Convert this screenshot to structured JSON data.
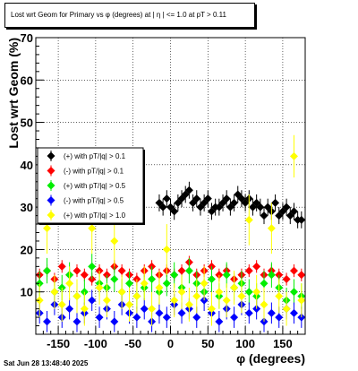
{
  "title": "Lost wrt Geom for Primary vs φ (degrees) at | η | <= 1.0 at pT > 0.11",
  "footer": "Sat Jun 28 13:48:40 2025",
  "chart_data": {
    "type": "scatter",
    "xlabel": "φ (degrees)",
    "ylabel": "Lost wrt Geom (%)",
    "xlim": [
      -180,
      180
    ],
    "ylim": [
      0,
      70
    ],
    "xticks": [
      -150,
      -100,
      -50,
      0,
      50,
      100,
      150
    ],
    "yticks": [
      10,
      20,
      30,
      40,
      50,
      60,
      70
    ],
    "grid": true,
    "legend_position": "middle-left",
    "series": [
      {
        "name": "(+) with pT/|q| > 0.1",
        "color": "#000000",
        "marker": "diamond",
        "x": [
          -15,
          -10,
          -5,
          0,
          5,
          10,
          15,
          20,
          25,
          30,
          35,
          40,
          45,
          50,
          55,
          60,
          65,
          70,
          75,
          80,
          85,
          90,
          95,
          100,
          105,
          110,
          115,
          120,
          125,
          130,
          135,
          140,
          145,
          150,
          155,
          160,
          165,
          170,
          175
        ],
        "y": [
          31,
          30,
          32,
          30,
          29,
          31,
          32,
          33,
          34,
          31,
          32,
          30,
          31,
          32,
          29,
          30,
          30,
          31,
          32,
          30,
          31,
          33,
          32,
          31,
          32,
          30,
          31,
          30,
          28,
          30,
          29,
          31,
          28,
          29,
          30,
          28,
          29,
          27,
          27
        ],
        "err": [
          2,
          2,
          2,
          2,
          2,
          2,
          2,
          2,
          2,
          2,
          2,
          2,
          2,
          2,
          2,
          2,
          2,
          2,
          2,
          2,
          2,
          2,
          2,
          2,
          2,
          2,
          2,
          2,
          2,
          2,
          2,
          2,
          2,
          2,
          2,
          2,
          2,
          2,
          2
        ]
      },
      {
        "name": "(-) with pT/|q| > 0.1",
        "color": "#ff0000",
        "marker": "diamond",
        "x": [
          -175,
          -165,
          -155,
          -145,
          -135,
          -125,
          -115,
          -105,
          -95,
          -85,
          -75,
          -65,
          -55,
          -45,
          -35,
          -25,
          -15,
          -5,
          5,
          15,
          25,
          35,
          45,
          55,
          65,
          75,
          85,
          95,
          105,
          115,
          125,
          135,
          145,
          155,
          165,
          175
        ],
        "y": [
          14,
          15,
          13,
          16,
          14,
          15,
          14,
          13,
          15,
          14,
          16,
          15,
          14,
          13,
          15,
          16,
          14,
          15,
          14,
          15,
          17,
          14,
          15,
          16,
          14,
          15,
          13,
          14,
          15,
          16,
          14,
          15,
          14,
          13,
          15,
          14
        ],
        "err": [
          1.5,
          1.5,
          1.5,
          1.5,
          1.5,
          1.5,
          1.5,
          1.5,
          1.5,
          1.5,
          1.5,
          1.5,
          1.5,
          1.5,
          1.5,
          1.5,
          1.5,
          1.5,
          1.5,
          1.5,
          1.5,
          1.5,
          1.5,
          1.5,
          1.5,
          1.5,
          1.5,
          1.5,
          1.5,
          1.5,
          1.5,
          1.5,
          1.5,
          1.5,
          1.5,
          1.5
        ]
      },
      {
        "name": "(+) with pT/|q| > 0.5",
        "color": "#00ee00",
        "marker": "diamond",
        "x": [
          -175,
          -165,
          -155,
          -145,
          -135,
          -125,
          -115,
          -105,
          -95,
          -85,
          -75,
          -65,
          -55,
          -45,
          -35,
          -25,
          -15,
          -5,
          5,
          15,
          25,
          35,
          45,
          55,
          65,
          75,
          85,
          95,
          105,
          115,
          125,
          135,
          145,
          155,
          165,
          175
        ],
        "y": [
          12,
          15,
          10,
          11,
          14,
          9,
          10,
          16,
          12,
          11,
          13,
          10,
          12,
          9,
          11,
          13,
          10,
          12,
          14,
          11,
          15,
          12,
          10,
          13,
          9,
          14,
          11,
          12,
          10,
          9,
          12,
          14,
          11,
          8,
          10,
          9
        ],
        "err": [
          3,
          3,
          3,
          3,
          3,
          3,
          3,
          3,
          3,
          3,
          3,
          3,
          3,
          3,
          3,
          3,
          3,
          3,
          3,
          3,
          3,
          3,
          3,
          3,
          3,
          3,
          3,
          3,
          3,
          3,
          3,
          3,
          3,
          3,
          3,
          3
        ]
      },
      {
        "name": "(-) with pT/|q| > 0.5",
        "color": "#0000ff",
        "marker": "diamond",
        "x": [
          -175,
          -165,
          -155,
          -145,
          -135,
          -125,
          -115,
          -105,
          -95,
          -85,
          -75,
          -65,
          -55,
          -45,
          -35,
          -25,
          -15,
          -5,
          5,
          15,
          25,
          35,
          45,
          55,
          65,
          75,
          85,
          95,
          105,
          115,
          125,
          135,
          145,
          155,
          165,
          175
        ],
        "y": [
          5,
          3,
          7,
          4,
          6,
          3,
          5,
          8,
          4,
          6,
          3,
          7,
          5,
          4,
          6,
          3,
          5,
          4,
          7,
          5,
          6,
          4,
          8,
          5,
          3,
          6,
          4,
          7,
          5,
          6,
          3,
          5,
          4,
          6,
          5,
          4
        ],
        "err": [
          2.5,
          2.5,
          2.5,
          2.5,
          2.5,
          2.5,
          2.5,
          2.5,
          2.5,
          2.5,
          2.5,
          2.5,
          2.5,
          2.5,
          2.5,
          2.5,
          2.5,
          2.5,
          2.5,
          2.5,
          2.5,
          2.5,
          2.5,
          2.5,
          2.5,
          2.5,
          2.5,
          2.5,
          2.5,
          2.5,
          2.5,
          2.5,
          2.5,
          2.5,
          2.5,
          2.5
        ]
      },
      {
        "name": "(+) with pT/|q| > 1.0",
        "color": "#ffff00",
        "marker": "diamond",
        "x": [
          -175,
          -165,
          -155,
          -145,
          -135,
          -125,
          -115,
          -105,
          -95,
          -85,
          -75,
          -65,
          -55,
          -45,
          -35,
          -25,
          -15,
          -5,
          5,
          15,
          25,
          35,
          45,
          55,
          65,
          75,
          85,
          95,
          105,
          115,
          125,
          135,
          145,
          155,
          165,
          175
        ],
        "y": [
          8,
          25,
          10,
          7,
          12,
          9,
          6,
          25,
          11,
          8,
          22,
          10,
          7,
          9,
          12,
          6,
          11,
          20,
          8,
          10,
          7,
          9,
          12,
          6,
          10,
          8,
          11,
          9,
          27,
          10,
          7,
          25,
          9,
          6,
          42,
          8
        ],
        "err": [
          4,
          6,
          4,
          4,
          4,
          4,
          4,
          6,
          4,
          4,
          6,
          4,
          4,
          4,
          4,
          4,
          4,
          6,
          4,
          4,
          4,
          4,
          4,
          4,
          4,
          4,
          4,
          4,
          6,
          4,
          4,
          6,
          4,
          4,
          5,
          4
        ]
      }
    ]
  }
}
